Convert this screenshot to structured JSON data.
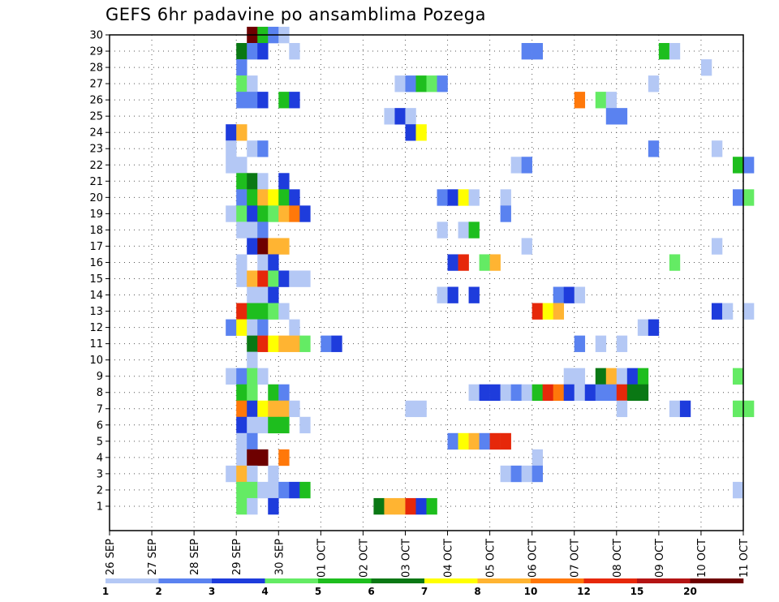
{
  "chart_data": {
    "type": "heatmap",
    "title": "GEFS 6hr padavine po ansamblima Pozega",
    "y_ticks": [
      1,
      2,
      3,
      4,
      5,
      6,
      7,
      8,
      9,
      10,
      11,
      12,
      13,
      14,
      15,
      16,
      17,
      18,
      19,
      20,
      21,
      22,
      23,
      24,
      25,
      26,
      27,
      28,
      29,
      30
    ],
    "x_ticks": [
      "26 SEP",
      "27 SEP",
      "28 SEP",
      "29 SEP",
      "30 SEP",
      "01 OCT",
      "02 OCT",
      "03 OCT",
      "04 OCT",
      "05 OCT",
      "06 OCT",
      "07 OCT",
      "08 OCT",
      "09 OCT",
      "10 OCT",
      "11 OCT"
    ],
    "grid": "dotted",
    "legend": {
      "position": "bottom",
      "labels": [
        "1",
        "2",
        "3",
        "4",
        "5",
        "6",
        "7",
        "8",
        "10",
        "12",
        "15",
        "20"
      ],
      "colors": [
        "#b4c8f5",
        "#5a82f0",
        "#1e3cdc",
        "#64eb64",
        "#1ebe1e",
        "#0a7814",
        "#ffff00",
        "#ffb432",
        "#ff780a",
        "#e6280a",
        "#b41414",
        "#6e0000"
      ]
    },
    "cells": [
      [
        3.25,
        30,
        12
      ],
      [
        3.5,
        30,
        5
      ],
      [
        3.75,
        30,
        2
      ],
      [
        4,
        30,
        1
      ],
      [
        3,
        29,
        6
      ],
      [
        3.25,
        29,
        2
      ],
      [
        3.5,
        29,
        3
      ],
      [
        4.25,
        29,
        1
      ],
      [
        9.75,
        29,
        2
      ],
      [
        10,
        29,
        2
      ],
      [
        13,
        29,
        5
      ],
      [
        13.25,
        29,
        1
      ],
      [
        3,
        28,
        2
      ],
      [
        14,
        28,
        1
      ],
      [
        3,
        27,
        4
      ],
      [
        3.25,
        27,
        1
      ],
      [
        6.75,
        27,
        1
      ],
      [
        7,
        27,
        2
      ],
      [
        7.25,
        27,
        5
      ],
      [
        7.5,
        27,
        4
      ],
      [
        7.75,
        27,
        2
      ],
      [
        12.75,
        27,
        1
      ],
      [
        3,
        26,
        2
      ],
      [
        3.25,
        26,
        2
      ],
      [
        3.5,
        26,
        3
      ],
      [
        4,
        26,
        5
      ],
      [
        4.25,
        26,
        3
      ],
      [
        11,
        26,
        9
      ],
      [
        11.5,
        26,
        4
      ],
      [
        11.75,
        26,
        1
      ],
      [
        6.5,
        25,
        1
      ],
      [
        6.75,
        25,
        3
      ],
      [
        7,
        25,
        1
      ],
      [
        11.75,
        25,
        2
      ],
      [
        12,
        25,
        2
      ],
      [
        2.75,
        24,
        3
      ],
      [
        3,
        24,
        8
      ],
      [
        7,
        24,
        3
      ],
      [
        7.25,
        24,
        7
      ],
      [
        2.75,
        23,
        1
      ],
      [
        3.25,
        23,
        1
      ],
      [
        3.5,
        23,
        2
      ],
      [
        12.75,
        23,
        2
      ],
      [
        14.25,
        23,
        1
      ],
      [
        2.75,
        22,
        1
      ],
      [
        3,
        22,
        1
      ],
      [
        9.5,
        22,
        1
      ],
      [
        9.75,
        22,
        2
      ],
      [
        14.75,
        22,
        5
      ],
      [
        15,
        22,
        2
      ],
      [
        3,
        21,
        5
      ],
      [
        3.25,
        21,
        6
      ],
      [
        3.5,
        21,
        1
      ],
      [
        4,
        21,
        3
      ],
      [
        3,
        20,
        2
      ],
      [
        3.25,
        20,
        5
      ],
      [
        3.5,
        20,
        8
      ],
      [
        3.75,
        20,
        7
      ],
      [
        4,
        20,
        5
      ],
      [
        4.25,
        20,
        3
      ],
      [
        7.75,
        20,
        2
      ],
      [
        8,
        20,
        3
      ],
      [
        8.25,
        20,
        7
      ],
      [
        8.5,
        20,
        1
      ],
      [
        9.25,
        20,
        1
      ],
      [
        14.75,
        20,
        2
      ],
      [
        15,
        20,
        4
      ],
      [
        2.75,
        19,
        1
      ],
      [
        3,
        19,
        4
      ],
      [
        3.25,
        19,
        3
      ],
      [
        3.5,
        19,
        5
      ],
      [
        3.75,
        19,
        4
      ],
      [
        4,
        19,
        8
      ],
      [
        4.25,
        19,
        9
      ],
      [
        4.5,
        19,
        3
      ],
      [
        9.25,
        19,
        2
      ],
      [
        3,
        18,
        1
      ],
      [
        3.25,
        18,
        1
      ],
      [
        3.5,
        18,
        2
      ],
      [
        7.75,
        18,
        1
      ],
      [
        8.25,
        18,
        1
      ],
      [
        8.5,
        18,
        5
      ],
      [
        3.25,
        17,
        3
      ],
      [
        3.5,
        17,
        12
      ],
      [
        3.75,
        17,
        8
      ],
      [
        4,
        17,
        8
      ],
      [
        9.75,
        17,
        1
      ],
      [
        14.25,
        17,
        1
      ],
      [
        3,
        16,
        1
      ],
      [
        3.5,
        16,
        1
      ],
      [
        3.75,
        16,
        3
      ],
      [
        8,
        16,
        3
      ],
      [
        8.25,
        16,
        10
      ],
      [
        8.75,
        16,
        4
      ],
      [
        9,
        16,
        8
      ],
      [
        13.25,
        16,
        4
      ],
      [
        3,
        15,
        1
      ],
      [
        3.25,
        15,
        8
      ],
      [
        3.5,
        15,
        10
      ],
      [
        3.75,
        15,
        4
      ],
      [
        4,
        15,
        3
      ],
      [
        4.25,
        15,
        1
      ],
      [
        4.5,
        15,
        1
      ],
      [
        3.25,
        14,
        1
      ],
      [
        3.5,
        14,
        1
      ],
      [
        3.75,
        14,
        3
      ],
      [
        7.75,
        14,
        1
      ],
      [
        8,
        14,
        3
      ],
      [
        8.5,
        14,
        3
      ],
      [
        10.5,
        14,
        2
      ],
      [
        10.75,
        14,
        3
      ],
      [
        11,
        14,
        1
      ],
      [
        3,
        13,
        10
      ],
      [
        3.25,
        13,
        5
      ],
      [
        3.5,
        13,
        5
      ],
      [
        3.75,
        13,
        4
      ],
      [
        4,
        13,
        1
      ],
      [
        10,
        13,
        10
      ],
      [
        10.25,
        13,
        7
      ],
      [
        10.5,
        13,
        8
      ],
      [
        14.25,
        13,
        3
      ],
      [
        14.5,
        13,
        1
      ],
      [
        15,
        13,
        1
      ],
      [
        2.75,
        12,
        2
      ],
      [
        3,
        12,
        7
      ],
      [
        3.25,
        12,
        1
      ],
      [
        3.5,
        12,
        2
      ],
      [
        4.25,
        12,
        1
      ],
      [
        12.5,
        12,
        1
      ],
      [
        12.75,
        12,
        3
      ],
      [
        3.25,
        11,
        6
      ],
      [
        3.5,
        11,
        10
      ],
      [
        3.75,
        11,
        7
      ],
      [
        4,
        11,
        8
      ],
      [
        4.25,
        11,
        8
      ],
      [
        4.5,
        11,
        4
      ],
      [
        5,
        11,
        2
      ],
      [
        5.25,
        11,
        3
      ],
      [
        11,
        11,
        2
      ],
      [
        11.5,
        11,
        1
      ],
      [
        12,
        11,
        1
      ],
      [
        3.25,
        10,
        1
      ],
      [
        2.75,
        9,
        1
      ],
      [
        3,
        9,
        2
      ],
      [
        3.25,
        9,
        4
      ],
      [
        3.5,
        9,
        1
      ],
      [
        10.75,
        9,
        1
      ],
      [
        11,
        9,
        1
      ],
      [
        11.5,
        9,
        6
      ],
      [
        11.75,
        9,
        8
      ],
      [
        12,
        9,
        1
      ],
      [
        12.25,
        9,
        3
      ],
      [
        12.5,
        9,
        5
      ],
      [
        14.75,
        9,
        4
      ],
      [
        3,
        8,
        5
      ],
      [
        3.25,
        8,
        4
      ],
      [
        3.75,
        8,
        5
      ],
      [
        4,
        8,
        2
      ],
      [
        8.5,
        8,
        1
      ],
      [
        8.75,
        8,
        3
      ],
      [
        9,
        8,
        3
      ],
      [
        9.25,
        8,
        1
      ],
      [
        9.5,
        8,
        2
      ],
      [
        9.75,
        8,
        1
      ],
      [
        10,
        8,
        5
      ],
      [
        10.25,
        8,
        10
      ],
      [
        10.5,
        8,
        9
      ],
      [
        10.75,
        8,
        3
      ],
      [
        11,
        8,
        1
      ],
      [
        11.25,
        8,
        3
      ],
      [
        11.5,
        8,
        2
      ],
      [
        11.75,
        8,
        2
      ],
      [
        12,
        8,
        10
      ],
      [
        12.25,
        8,
        6
      ],
      [
        12.5,
        8,
        6
      ],
      [
        3,
        7,
        9
      ],
      [
        3.25,
        7,
        3
      ],
      [
        3.5,
        7,
        7
      ],
      [
        3.75,
        7,
        8
      ],
      [
        4,
        7,
        8
      ],
      [
        4.25,
        7,
        1
      ],
      [
        7,
        7,
        1
      ],
      [
        7.25,
        7,
        1
      ],
      [
        12,
        7,
        1
      ],
      [
        13.25,
        7,
        1
      ],
      [
        13.5,
        7,
        3
      ],
      [
        14.75,
        7,
        4
      ],
      [
        15,
        7,
        4
      ],
      [
        3,
        6,
        3
      ],
      [
        3.25,
        6,
        1
      ],
      [
        3.5,
        6,
        1
      ],
      [
        3.75,
        6,
        5
      ],
      [
        4,
        6,
        5
      ],
      [
        4.5,
        6,
        1
      ],
      [
        3,
        5,
        1
      ],
      [
        3.25,
        5,
        2
      ],
      [
        8,
        5,
        2
      ],
      [
        8.25,
        5,
        7
      ],
      [
        8.5,
        5,
        8
      ],
      [
        8.75,
        5,
        2
      ],
      [
        9,
        5,
        10
      ],
      [
        9.25,
        5,
        10
      ],
      [
        3,
        4,
        1
      ],
      [
        3.25,
        4,
        12
      ],
      [
        3.5,
        4,
        12
      ],
      [
        4,
        4,
        9
      ],
      [
        10,
        4,
        1
      ],
      [
        2.75,
        3,
        1
      ],
      [
        3,
        3,
        8
      ],
      [
        3.25,
        3,
        1
      ],
      [
        3.75,
        3,
        1
      ],
      [
        9.25,
        3,
        1
      ],
      [
        9.5,
        3,
        2
      ],
      [
        9.75,
        3,
        1
      ],
      [
        10,
        3,
        2
      ],
      [
        3,
        2,
        4
      ],
      [
        3.25,
        2,
        4
      ],
      [
        3.5,
        2,
        1
      ],
      [
        3.75,
        2,
        1
      ],
      [
        4,
        2,
        2
      ],
      [
        4.25,
        2,
        3
      ],
      [
        4.5,
        2,
        5
      ],
      [
        14.75,
        2,
        1
      ],
      [
        3,
        1,
        4
      ],
      [
        3.25,
        1,
        1
      ],
      [
        3.75,
        1,
        3
      ],
      [
        6.25,
        1,
        6
      ],
      [
        6.5,
        1,
        8
      ],
      [
        6.75,
        1,
        8
      ],
      [
        7,
        1,
        10
      ],
      [
        7.25,
        1,
        3
      ],
      [
        7.5,
        1,
        5
      ]
    ]
  }
}
